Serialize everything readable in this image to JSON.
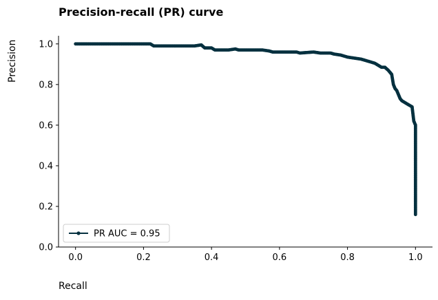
{
  "chart_data": {
    "type": "line",
    "title": "Precision-recall (PR) curve",
    "xlabel": "Recall",
    "ylabel": "Precision",
    "xlim": [
      -0.05,
      1.05
    ],
    "ylim": [
      0,
      1.04
    ],
    "xticks": [
      0.0,
      0.2,
      0.4,
      0.6,
      0.8,
      1.0
    ],
    "xtick_labels": [
      "0.0",
      "0.2",
      "0.4",
      "0.6",
      "0.8",
      "1.0"
    ],
    "yticks": [
      0.0,
      0.2,
      0.4,
      0.6,
      0.8,
      1.0
    ],
    "ytick_labels": [
      "0.0",
      "0.2",
      "0.4",
      "0.6",
      "0.8",
      "1.0"
    ],
    "grid": false,
    "legend_position": "lower-left",
    "color": "#05303f",
    "series": [
      {
        "name": "PR AUC = 0.95",
        "x": [
          0.0,
          0.05,
          0.1,
          0.15,
          0.2,
          0.22,
          0.23,
          0.25,
          0.3,
          0.35,
          0.37,
          0.38,
          0.4,
          0.41,
          0.45,
          0.47,
          0.48,
          0.5,
          0.55,
          0.57,
          0.58,
          0.6,
          0.62,
          0.65,
          0.66,
          0.7,
          0.72,
          0.75,
          0.76,
          0.78,
          0.8,
          0.82,
          0.84,
          0.86,
          0.88,
          0.9,
          0.91,
          0.92,
          0.93,
          0.935,
          0.94,
          0.945,
          0.95,
          0.955,
          0.96,
          0.97,
          0.98,
          0.99,
          0.995,
          1.0,
          1.0,
          1.0,
          1.0,
          1.0,
          1.0,
          1.0
        ],
        "y": [
          1.0,
          1.0,
          1.0,
          1.0,
          1.0,
          1.0,
          0.99,
          0.99,
          0.99,
          0.99,
          0.995,
          0.98,
          0.98,
          0.97,
          0.97,
          0.975,
          0.97,
          0.97,
          0.97,
          0.965,
          0.96,
          0.96,
          0.96,
          0.96,
          0.955,
          0.96,
          0.955,
          0.955,
          0.95,
          0.945,
          0.935,
          0.93,
          0.925,
          0.915,
          0.905,
          0.885,
          0.885,
          0.87,
          0.85,
          0.8,
          0.78,
          0.77,
          0.75,
          0.73,
          0.72,
          0.71,
          0.7,
          0.69,
          0.62,
          0.6,
          0.5,
          0.4,
          0.3,
          0.2,
          0.17,
          0.16
        ]
      }
    ]
  }
}
